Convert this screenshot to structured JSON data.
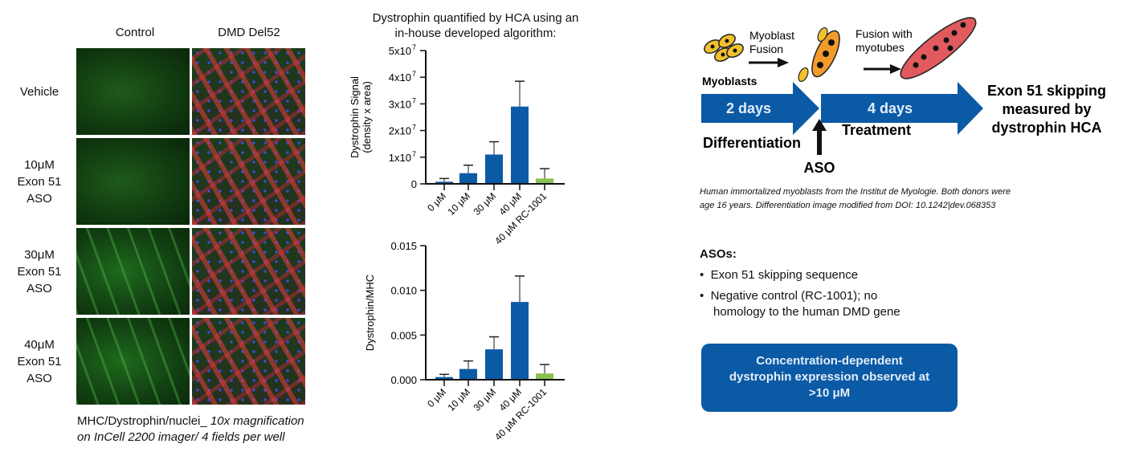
{
  "micrograph": {
    "columns": [
      "Control",
      "DMD Del52"
    ],
    "rows": [
      {
        "label": [
          "Vehicle"
        ]
      },
      {
        "label": [
          "10μM",
          "Exon 51",
          "ASO"
        ]
      },
      {
        "label": [
          "30μM",
          "Exon 51",
          "ASO"
        ]
      },
      {
        "label": [
          "40μM",
          "Exon 51",
          "ASO"
        ]
      }
    ],
    "caption_plain": "MHC/Dystrophin/nuclei_ ",
    "caption_italic_1": "10x magnification",
    "caption_italic_2": "on InCell 2200 imager/ 4 fields per well"
  },
  "chart_title": [
    "Dystrophin quantified by HCA using an",
    "in-house developed algorithm:"
  ],
  "colors": {
    "treatment": "#0b5aa6",
    "negative_control": "#8cc152",
    "error_bar": "#666666"
  },
  "chart_data": [
    {
      "type": "bar",
      "categories": [
        "0 μM",
        "10 μM",
        "30 μM",
        "40 μM",
        "40 μM RC-1001"
      ],
      "values": [
        800000,
        4000000,
        11000000,
        29000000,
        2000000
      ],
      "error_upper": [
        2000000,
        7000000,
        15800000,
        38500000,
        5700000
      ],
      "ylabel": [
        "Dystrophin Signal",
        "(density x area)"
      ],
      "ylim": [
        0,
        50000000
      ],
      "yticks": [
        "0",
        "1x10",
        "2x10",
        "3x10",
        "4x10",
        "5x10"
      ],
      "ytick_exponent": "7",
      "grid": false
    },
    {
      "type": "bar",
      "categories": [
        "0 μM",
        "10 μM",
        "30 μM",
        "40 μM",
        "40 μM RC-1001"
      ],
      "values": [
        0.0003,
        0.0012,
        0.0034,
        0.0087,
        0.0007
      ],
      "error_upper": [
        0.0006,
        0.0021,
        0.0048,
        0.0116,
        0.0017
      ],
      "ylabel": [
        "Dystrophin/MHC"
      ],
      "ylim": [
        0,
        0.015
      ],
      "yticks": [
        "0.000",
        "0.005",
        "0.010",
        "0.015"
      ],
      "grid": false
    }
  ],
  "diagram": {
    "myoblasts": "Myoblasts",
    "step1": [
      "Myoblast",
      "Fusion"
    ],
    "step2": [
      "Fusion with",
      "myotubes"
    ],
    "arrow1": "2 days",
    "arrow2": "4 days",
    "differentiation": "Differentiation",
    "treatment": "Treatment",
    "aso": "ASO",
    "endpoint": [
      "Exon 51 skipping",
      "measured by",
      "dystrophin HCA"
    ]
  },
  "note": [
    "Human immortalized myoblasts from the Institut de Myologie. Both donors were",
    "age 16 years. Differentiation image modified from DOI: 10.1242|dev.068353"
  ],
  "asos": {
    "heading": "ASOs:",
    "items": [
      "Exon 51 skipping sequence",
      "Negative control (RC-1001); no",
      "homology to the human DMD gene"
    ]
  },
  "result_box": [
    "Concentration-dependent",
    "dystrophin expression observed at",
    ">10 μM"
  ]
}
